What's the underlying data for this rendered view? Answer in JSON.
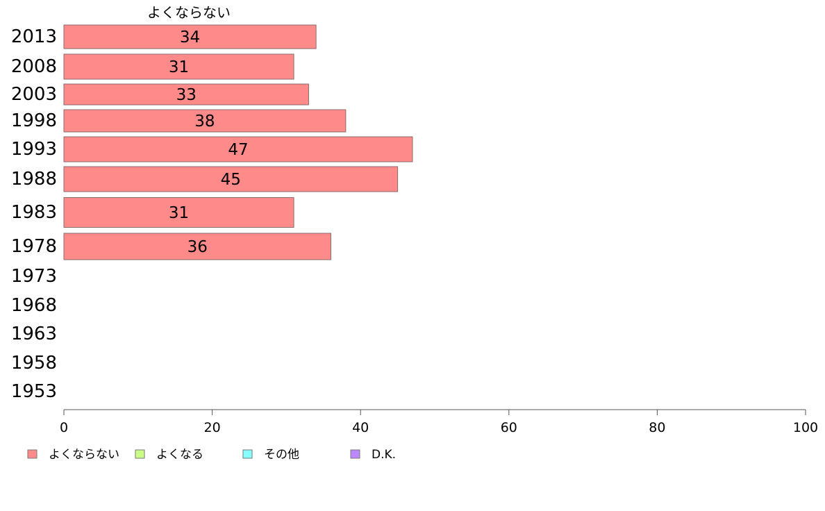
{
  "chart_data": {
    "type": "bar",
    "orientation": "horizontal",
    "stacked": true,
    "categories": [
      "2013",
      "2008",
      "2003",
      "1998",
      "1993",
      "1988",
      "1983",
      "1978",
      "1973",
      "1968",
      "1963",
      "1958",
      "1953"
    ],
    "series": [
      {
        "name": "よくならない",
        "color": "#ff8a8a",
        "values": [
          34,
          31,
          33,
          38,
          47,
          45,
          31,
          36,
          null,
          null,
          null,
          null,
          null
        ]
      },
      {
        "name": "よくなる",
        "color": "#ccff88",
        "values": [
          null,
          null,
          null,
          null,
          null,
          null,
          null,
          null,
          null,
          null,
          null,
          null,
          null
        ]
      },
      {
        "name": "その他",
        "color": "#88ffff",
        "values": [
          null,
          null,
          null,
          null,
          null,
          null,
          null,
          null,
          null,
          null,
          null,
          null,
          null
        ]
      },
      {
        "name": "D.K.",
        "color": "#bb88ff",
        "values": [
          null,
          null,
          null,
          null,
          null,
          null,
          null,
          null,
          null,
          null,
          null,
          null,
          null
        ]
      }
    ],
    "series_title": "よくならない",
    "xlim": [
      0,
      100
    ],
    "xticks": [
      0,
      20,
      40,
      60,
      80,
      100
    ],
    "grid": false,
    "legend_position": "bottom-left"
  }
}
